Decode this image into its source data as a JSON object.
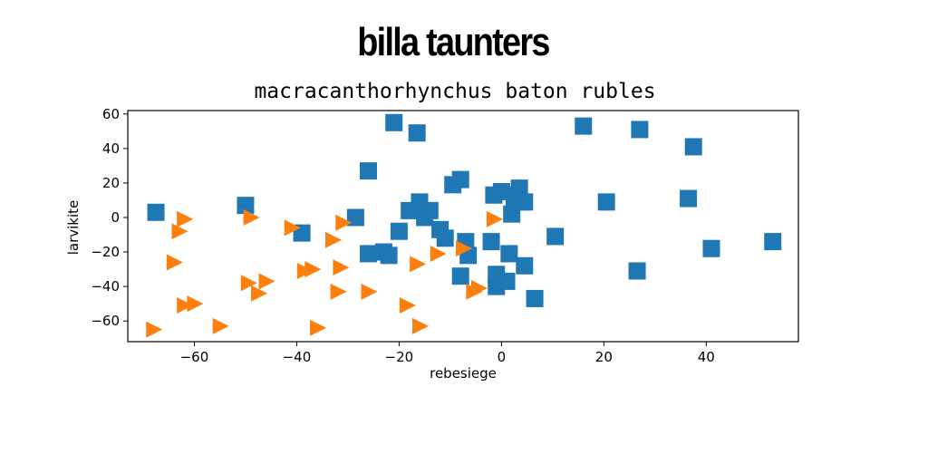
{
  "page": {
    "headline": "billa taunters"
  },
  "chart_data": {
    "type": "scatter",
    "title": "macracanthorhynchus baton rubles",
    "xlabel": "rebesiege",
    "ylabel": "larvikite",
    "xlim": [
      -73,
      58
    ],
    "ylim": [
      -72,
      62
    ],
    "xticks": [
      -60,
      -40,
      -20,
      0,
      20,
      40
    ],
    "yticks": [
      -60,
      -40,
      -20,
      0,
      20,
      40,
      60
    ],
    "grid": false,
    "legend": "none",
    "series": [
      {
        "marker": "square",
        "color": "#1f77b4",
        "points": [
          [
            -67.5,
            3
          ],
          [
            -50,
            7
          ],
          [
            -39,
            -9
          ],
          [
            -28.5,
            0
          ],
          [
            -26,
            27
          ],
          [
            -26,
            -21
          ],
          [
            -23,
            -20
          ],
          [
            -22,
            -22
          ],
          [
            -21,
            55
          ],
          [
            -20,
            -8
          ],
          [
            -18,
            4
          ],
          [
            -16.5,
            49
          ],
          [
            -16,
            9
          ],
          [
            -15,
            0
          ],
          [
            -14,
            4
          ],
          [
            -12,
            -7
          ],
          [
            -11,
            -12
          ],
          [
            -9.5,
            19
          ],
          [
            -8,
            22
          ],
          [
            -8,
            -34
          ],
          [
            -7,
            -14
          ],
          [
            -6.5,
            -22
          ],
          [
            -2,
            -14
          ],
          [
            -1.5,
            13
          ],
          [
            -1,
            -40
          ],
          [
            -1,
            -33
          ],
          [
            0,
            15
          ],
          [
            1,
            -37
          ],
          [
            1.5,
            -21
          ],
          [
            2,
            2
          ],
          [
            2.5,
            9
          ],
          [
            3,
            13
          ],
          [
            3.5,
            17
          ],
          [
            4.5,
            9
          ],
          [
            4.5,
            -28
          ],
          [
            6.5,
            -47
          ],
          [
            10.5,
            -11
          ],
          [
            16,
            53
          ],
          [
            20.5,
            9
          ],
          [
            26.5,
            -31
          ],
          [
            27,
            51
          ],
          [
            36.5,
            11
          ],
          [
            37.5,
            41
          ],
          [
            41,
            -18
          ],
          [
            53,
            -14
          ]
        ]
      },
      {
        "marker": "triangle-right",
        "color": "#ff7f0e",
        "points": [
          [
            -68,
            -65
          ],
          [
            -64,
            -26
          ],
          [
            -63,
            -8
          ],
          [
            -62,
            -1
          ],
          [
            -62,
            -51
          ],
          [
            -60,
            -50
          ],
          [
            -55,
            -63
          ],
          [
            -49.5,
            -38
          ],
          [
            -49,
            0
          ],
          [
            -47.5,
            -44
          ],
          [
            -46,
            -37
          ],
          [
            -41,
            -6
          ],
          [
            -38.5,
            -31
          ],
          [
            -37,
            -30
          ],
          [
            -36,
            -64
          ],
          [
            -33,
            -13
          ],
          [
            -32,
            -43
          ],
          [
            -31.5,
            -29
          ],
          [
            -31,
            -3
          ],
          [
            -26,
            -43
          ],
          [
            -18.5,
            -51
          ],
          [
            -16.5,
            -27
          ],
          [
            -16,
            -63
          ],
          [
            -12.5,
            -21
          ],
          [
            -7.5,
            -18
          ],
          [
            -5.5,
            -43
          ],
          [
            -4.5,
            -41
          ],
          [
            -1.5,
            -1
          ]
        ]
      }
    ]
  }
}
